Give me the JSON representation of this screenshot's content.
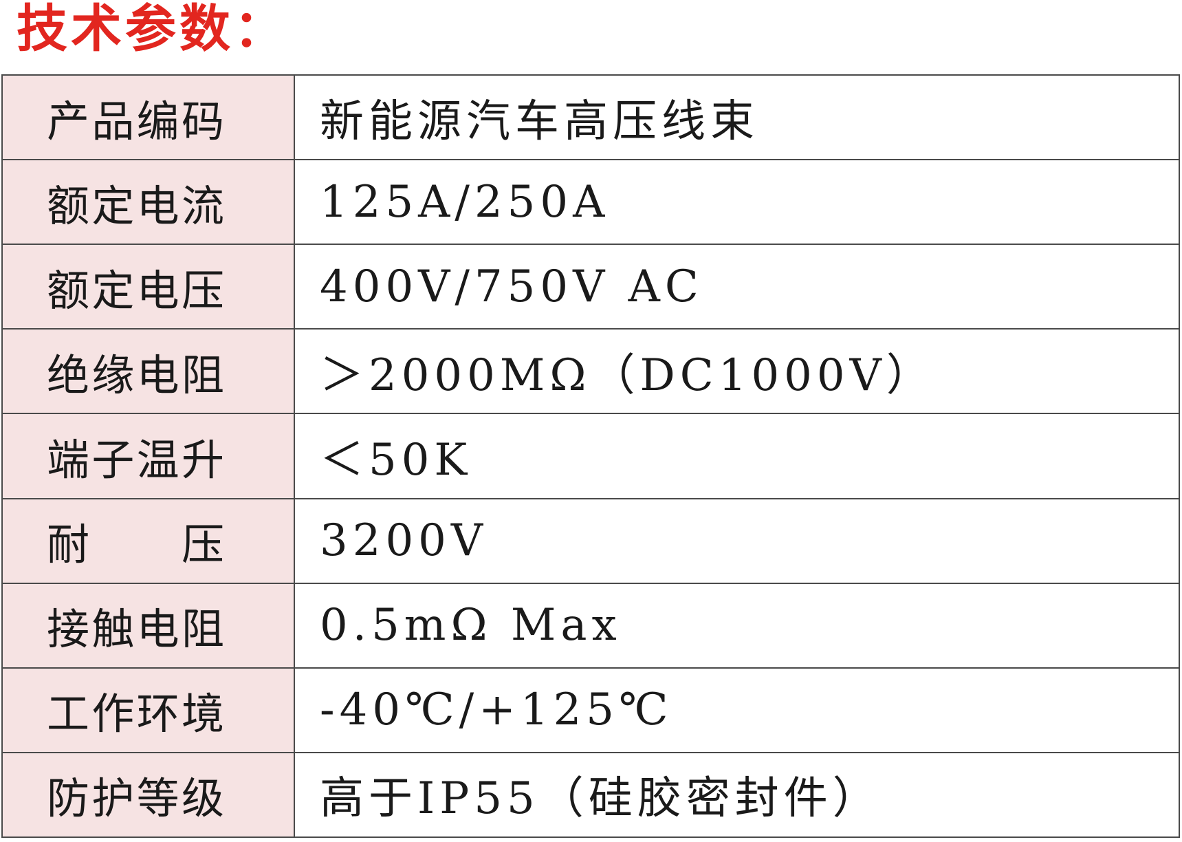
{
  "title": {
    "text": "技术参数：",
    "color": "#e2261f"
  },
  "table": {
    "label_column_bg": "#f6e3e3",
    "border_color": "#4a4a4a",
    "rows": [
      {
        "label": "产品编码",
        "value": "新能源汽车高压线束"
      },
      {
        "label": "额定电流",
        "value": "125A/250A"
      },
      {
        "label": "额定电压",
        "value": "400V/750V AC"
      },
      {
        "label": "绝缘电阻",
        "value": "＞2000MΩ（DC1000V）"
      },
      {
        "label": "端子温升",
        "value": "＜50K"
      },
      {
        "label": "耐压",
        "value": "3200V"
      },
      {
        "label": "接触电阻",
        "value": "0.5mΩ Max"
      },
      {
        "label": "工作环境",
        "value": "-40℃/+125℃"
      },
      {
        "label": "防护等级",
        "value": "高于IP55（硅胶密封件）"
      }
    ]
  }
}
